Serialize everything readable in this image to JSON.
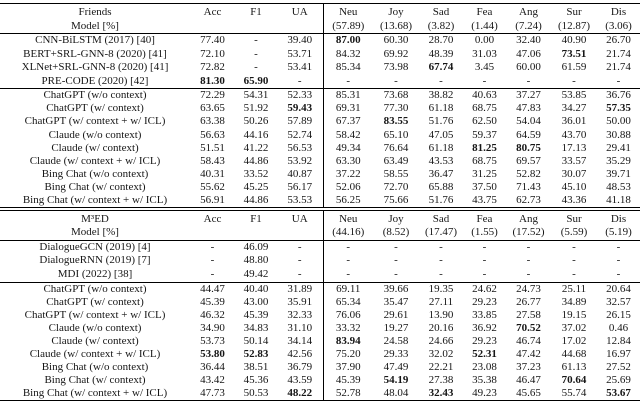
{
  "figure": {
    "background": "#ffffff",
    "text_color": "#161616",
    "rule_color": "#000000"
  },
  "tables": [
    {
      "id": "friends",
      "header": {
        "title_line1": "Friends",
        "title_line2": "Model [%]",
        "metrics": [
          "Acc",
          "F1",
          "UA"
        ],
        "emotions": [
          {
            "label": "Neu",
            "pct": "(57.89)"
          },
          {
            "label": "Joy",
            "pct": "(13.68)"
          },
          {
            "label": "Sad",
            "pct": "(3.82)"
          },
          {
            "label": "Fea",
            "pct": "(1.44)"
          },
          {
            "label": "Ang",
            "pct": "(7.24)"
          },
          {
            "label": "Sur",
            "pct": "(12.87)"
          },
          {
            "label": "Dis",
            "pct": "(3.06)"
          }
        ]
      },
      "groups": [
        {
          "rows": [
            {
              "model": "CNN-BiLSTM (2017) [40]",
              "values": [
                "77.40",
                "-",
                "39.40",
                "87.00",
                "60.30",
                "28.70",
                "0.00",
                "32.40",
                "40.90",
                "26.70"
              ],
              "bold": [
                3
              ]
            },
            {
              "model": "BERT+SRL-GNN-8 (2020) [41]",
              "values": [
                "72.10",
                "-",
                "53.71",
                "84.32",
                "69.92",
                "48.39",
                "31.03",
                "47.06",
                "73.51",
                "21.74"
              ],
              "bold": [
                8
              ]
            },
            {
              "model": "XLNet+SRL-GNN-8 (2020) [41]",
              "values": [
                "72.82",
                "-",
                "53.41",
                "85.34",
                "73.98",
                "67.74",
                "3.45",
                "60.00",
                "61.59",
                "21.74"
              ],
              "bold": [
                5
              ]
            },
            {
              "model": "PRE-CODE (2020) [42]",
              "values": [
                "81.30",
                "65.90",
                "-",
                "-",
                "-",
                "-",
                "-",
                "-",
                "-",
                "-"
              ],
              "bold": [
                0,
                1
              ]
            }
          ]
        },
        {
          "rows": [
            {
              "model": "ChatGPT (w/o context)",
              "values": [
                "72.29",
                "54.31",
                "52.33",
                "85.31",
                "73.68",
                "38.82",
                "40.63",
                "37.27",
                "53.85",
                "36.76"
              ],
              "bold": []
            },
            {
              "model": "ChatGPT (w/ context)",
              "values": [
                "63.65",
                "51.92",
                "59.43",
                "69.31",
                "77.30",
                "61.18",
                "68.75",
                "47.83",
                "34.27",
                "57.35"
              ],
              "bold": [
                2,
                9
              ]
            },
            {
              "model": "ChatGPT (w/ context + w/ ICL)",
              "values": [
                "63.38",
                "50.26",
                "57.89",
                "67.37",
                "83.55",
                "51.76",
                "62.50",
                "54.04",
                "36.01",
                "50.00"
              ],
              "bold": [
                4
              ]
            },
            {
              "model": "Claude (w/o context)",
              "values": [
                "56.63",
                "44.16",
                "52.74",
                "58.42",
                "65.10",
                "47.05",
                "59.37",
                "64.59",
                "43.70",
                "30.88"
              ],
              "bold": []
            },
            {
              "model": "Claude (w/ context)",
              "values": [
                "51.51",
                "41.22",
                "56.53",
                "49.34",
                "76.64",
                "61.18",
                "81.25",
                "80.75",
                "17.13",
                "29.41"
              ],
              "bold": [
                6,
                7
              ]
            },
            {
              "model": "Claude (w/ context + w/ ICL)",
              "values": [
                "58.43",
                "44.86",
                "53.92",
                "63.30",
                "63.49",
                "43.53",
                "68.75",
                "69.57",
                "33.57",
                "35.29"
              ],
              "bold": []
            },
            {
              "model": "Bing Chat (w/o context)",
              "values": [
                "40.31",
                "33.52",
                "40.87",
                "37.22",
                "58.55",
                "36.47",
                "31.25",
                "52.82",
                "30.07",
                "39.71"
              ],
              "bold": []
            },
            {
              "model": "Bing Chat (w/ context)",
              "values": [
                "55.62",
                "45.25",
                "56.17",
                "52.06",
                "72.70",
                "65.88",
                "37.50",
                "71.43",
                "45.10",
                "48.53"
              ],
              "bold": []
            },
            {
              "model": "Bing Chat (w/ context + w/ ICL)",
              "values": [
                "56.91",
                "44.86",
                "53.53",
                "56.25",
                "75.66",
                "51.76",
                "43.75",
                "62.73",
                "43.36",
                "41.18"
              ],
              "bold": []
            }
          ]
        }
      ]
    },
    {
      "id": "m3ed",
      "header": {
        "title_line1": "M³ED",
        "title_line2": "Model [%]",
        "metrics": [
          "Acc",
          "F1",
          "UA"
        ],
        "emotions": [
          {
            "label": "Neu",
            "pct": "(44.16)"
          },
          {
            "label": "Joy",
            "pct": "(8.52)"
          },
          {
            "label": "Sad",
            "pct": "(17.47)"
          },
          {
            "label": "Fea",
            "pct": "(1.55)"
          },
          {
            "label": "Ang",
            "pct": "(17.52)"
          },
          {
            "label": "Sur",
            "pct": "(5.59)"
          },
          {
            "label": "Dis",
            "pct": "(5.19)"
          }
        ]
      },
      "groups": [
        {
          "rows": [
            {
              "model": "DialogueGCN (2019) [4]",
              "values": [
                "-",
                "46.09",
                "-",
                "-",
                "-",
                "-",
                "-",
                "-",
                "-",
                "-"
              ],
              "bold": []
            },
            {
              "model": "DialogueRNN (2019) [7]",
              "values": [
                "-",
                "48.80",
                "-",
                "-",
                "-",
                "-",
                "-",
                "-",
                "-",
                "-"
              ],
              "bold": []
            },
            {
              "model": "MDI (2022) [38]",
              "values": [
                "-",
                "49.42",
                "-",
                "-",
                "-",
                "-",
                "-",
                "-",
                "-",
                "-"
              ],
              "bold": []
            }
          ]
        },
        {
          "rows": [
            {
              "model": "ChatGPT (w/o context)",
              "values": [
                "44.47",
                "40.40",
                "31.89",
                "69.11",
                "39.66",
                "19.35",
                "24.62",
                "24.73",
                "25.11",
                "20.64"
              ],
              "bold": []
            },
            {
              "model": "ChatGPT (w/ context)",
              "values": [
                "45.39",
                "43.00",
                "35.91",
                "65.34",
                "35.47",
                "27.11",
                "29.23",
                "26.77",
                "34.89",
                "32.57"
              ],
              "bold": []
            },
            {
              "model": "ChatGPT (w/ context + w/ ICL)",
              "values": [
                "46.32",
                "45.39",
                "32.33",
                "76.06",
                "29.61",
                "13.90",
                "33.85",
                "27.58",
                "19.15",
                "26.15"
              ],
              "bold": []
            },
            {
              "model": "Claude (w/o context)",
              "values": [
                "34.90",
                "34.83",
                "31.10",
                "33.32",
                "19.27",
                "20.16",
                "36.92",
                "70.52",
                "37.02",
                "0.46"
              ],
              "bold": [
                7
              ]
            },
            {
              "model": "Claude (w/ context)",
              "values": [
                "53.73",
                "50.14",
                "34.14",
                "83.94",
                "24.58",
                "24.66",
                "29.23",
                "46.74",
                "17.02",
                "12.84"
              ],
              "bold": [
                3
              ]
            },
            {
              "model": "Claude (w/ context + w/ ICL)",
              "values": [
                "53.80",
                "52.83",
                "42.56",
                "75.20",
                "29.33",
                "32.02",
                "52.31",
                "47.42",
                "44.68",
                "16.97"
              ],
              "bold": [
                0,
                1,
                6
              ]
            },
            {
              "model": "Bing Chat (w/o context)",
              "values": [
                "36.44",
                "38.51",
                "36.79",
                "37.90",
                "47.49",
                "22.21",
                "23.08",
                "37.23",
                "61.13",
                "27.52"
              ],
              "bold": []
            },
            {
              "model": "Bing Chat (w/ context)",
              "values": [
                "43.42",
                "45.36",
                "43.59",
                "45.39",
                "54.19",
                "27.38",
                "35.38",
                "46.47",
                "70.64",
                "25.69"
              ],
              "bold": [
                4,
                8
              ]
            },
            {
              "model": "Bing Chat (w/ context + w/ ICL)",
              "values": [
                "47.73",
                "50.53",
                "48.22",
                "52.78",
                "48.04",
                "32.43",
                "49.23",
                "45.65",
                "55.74",
                "53.67"
              ],
              "bold": [
                2,
                5,
                9
              ]
            }
          ]
        }
      ]
    }
  ]
}
